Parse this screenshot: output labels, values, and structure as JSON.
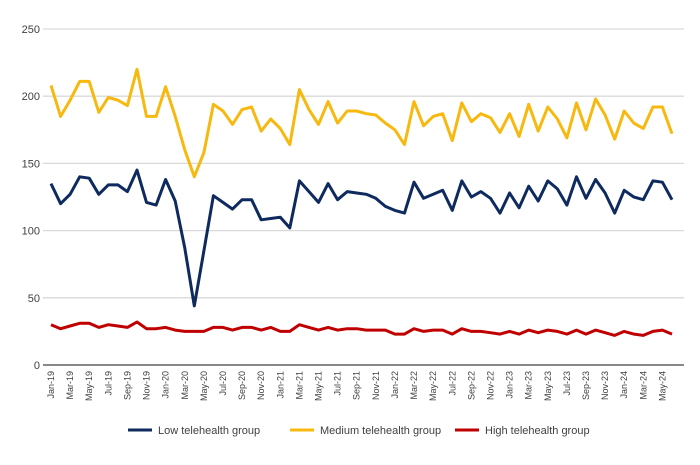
{
  "chart_data": {
    "type": "line",
    "title": "",
    "xlabel": "",
    "ylabel": "",
    "ylim": [
      0,
      250
    ],
    "yticks": [
      0,
      50,
      100,
      150,
      200,
      250
    ],
    "grid": true,
    "legend_placement": "bottom",
    "start_month": "Jan-19",
    "x_tick_labels": [
      "Jan-19",
      "Mar-19",
      "May-19",
      "Jul-19",
      "Sep-19",
      "Nov-19",
      "Jan-20",
      "Mar-20",
      "May-20",
      "Jul-20",
      "Sep-20",
      "Nov-20",
      "Jan-21",
      "Mar-21",
      "May-21",
      "Jul-21",
      "Sep-21",
      "Nov-21",
      "Jan-22",
      "Mar-22",
      "May-22",
      "Jul-22",
      "Sep-22",
      "Nov-22",
      "Jan-23",
      "Mar-23",
      "May-23",
      "Jul-23",
      "Sep-23",
      "Nov-23",
      "Jan-24",
      "Mar-24",
      "May-24"
    ],
    "series": [
      {
        "name": "Low telehealth group",
        "color": "#0e2a5e",
        "values": [
          135,
          120,
          127,
          140,
          139,
          127,
          134,
          134,
          129,
          145,
          121,
          119,
          138,
          122,
          87,
          44,
          85,
          126,
          121,
          116,
          123,
          123,
          108,
          109,
          110,
          102,
          137,
          129,
          121,
          135,
          123,
          129,
          128,
          127,
          124,
          118,
          115,
          113,
          136,
          124,
          127,
          130,
          115,
          137,
          125,
          129,
          124,
          113,
          128,
          117,
          133,
          122,
          137,
          131,
          119,
          140,
          124,
          138,
          128,
          113,
          130,
          125,
          123,
          137,
          136,
          123
        ]
      },
      {
        "name": "Medium telehealth group",
        "color": "#f7b90f",
        "values": [
          208,
          185,
          197,
          211,
          211,
          188,
          199,
          197,
          193,
          220,
          185,
          185,
          207,
          185,
          160,
          140,
          158,
          194,
          189,
          179,
          190,
          192,
          174,
          183,
          176,
          164,
          205,
          190,
          179,
          196,
          180,
          189,
          189,
          187,
          186,
          180,
          175,
          164,
          196,
          178,
          185,
          187,
          167,
          195,
          181,
          187,
          184,
          173,
          187,
          170,
          194,
          174,
          192,
          183,
          169,
          195,
          175,
          198,
          186,
          168,
          189,
          180,
          176,
          192,
          192,
          172
        ]
      },
      {
        "name": "High telehealth group",
        "color": "#c00000",
        "values": [
          30,
          27,
          29,
          31,
          31,
          28,
          30,
          29,
          28,
          32,
          27,
          27,
          28,
          26,
          25,
          25,
          25,
          28,
          28,
          26,
          28,
          28,
          26,
          28,
          25,
          25,
          30,
          28,
          26,
          28,
          26,
          27,
          27,
          26,
          26,
          26,
          23,
          23,
          27,
          25,
          26,
          26,
          23,
          27,
          25,
          25,
          24,
          23,
          25,
          23,
          26,
          24,
          26,
          25,
          23,
          26,
          23,
          26,
          24,
          22,
          25,
          23,
          22,
          25,
          26,
          23
        ]
      }
    ]
  }
}
